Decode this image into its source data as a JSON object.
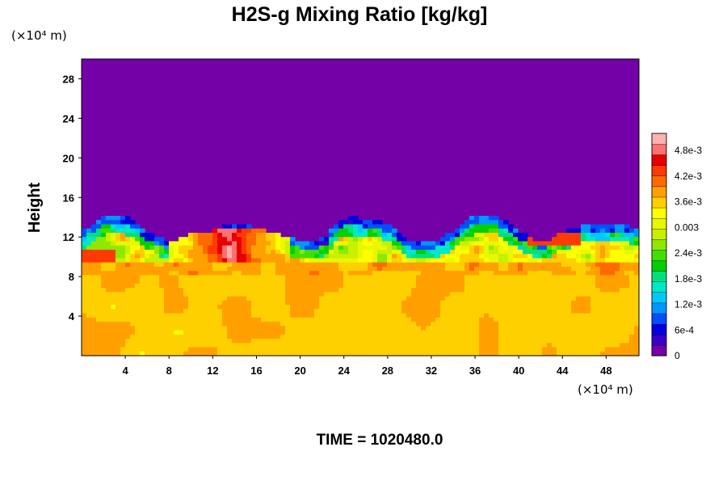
{
  "chart_data": {
    "type": "heatmap",
    "title": "H2S-g Mixing Ratio [kg/kg]",
    "xlabel": "",
    "ylabel": "Height",
    "x_unit": "(×10⁴ m)",
    "y_unit": "(×10⁴ m)",
    "xlim": [
      0,
      51
    ],
    "ylim": [
      0,
      30
    ],
    "x_ticks": [
      "4",
      "8",
      "12",
      "16",
      "20",
      "24",
      "28",
      "32",
      "36",
      "40",
      "44",
      "48"
    ],
    "x_tick_values": [
      4,
      8,
      12,
      16,
      20,
      24,
      28,
      32,
      36,
      40,
      44,
      48
    ],
    "y_ticks": [
      "4",
      "8",
      "12",
      "16",
      "20",
      "24",
      "28"
    ],
    "y_tick_values": [
      4,
      8,
      12,
      16,
      20,
      24,
      28
    ],
    "colorbar": {
      "labels": [
        "0",
        "6e-4",
        "1.2e-3",
        "1.8e-3",
        "2.4e-3",
        "0.003",
        "3.6e-3",
        "4.2e-3",
        "4.8e-3"
      ],
      "values": [
        0,
        0.0006,
        0.0012,
        0.0018,
        0.0024,
        0.003,
        0.0036,
        0.0042,
        0.0048
      ],
      "range": [
        0,
        0.0052
      ],
      "colors": [
        "#7400a8",
        "#3a00c8",
        "#0000e0",
        "#0050ff",
        "#0096ff",
        "#00c8ff",
        "#00e8c8",
        "#00e080",
        "#00d000",
        "#40e000",
        "#90e800",
        "#c8f000",
        "#e8f800",
        "#ffff00",
        "#ffd000",
        "#ffa000",
        "#ff6a00",
        "#ff3a00",
        "#e80000",
        "#ff7070",
        "#ffb0b0"
      ]
    },
    "field": {
      "description_rows": [
        {
          "height_range": [
            13.5,
            30
          ],
          "value": 0
        },
        {
          "height_range": [
            10.5,
            13.5
          ],
          "value_range": [
            0.0006,
            0.0042
          ]
        },
        {
          "height_range": [
            0,
            10.5
          ],
          "value_range": [
            0.0034,
            0.0038
          ]
        }
      ],
      "hotspot": {
        "x_range": [
          8,
          19
        ],
        "y_range": [
          9.5,
          12.5
        ],
        "value": 0.0048
      }
    }
  },
  "footer": {
    "time_label": "TIME = 1020480.0"
  }
}
